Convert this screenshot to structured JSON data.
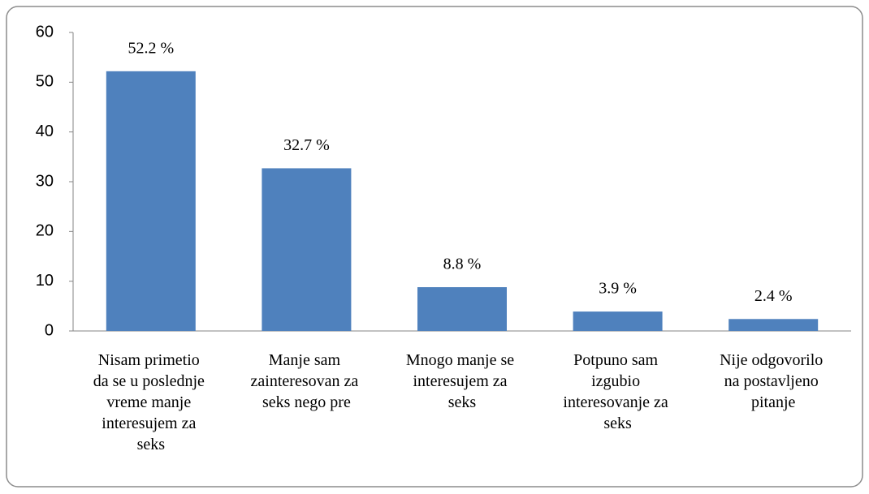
{
  "chart_data": {
    "type": "bar",
    "categories": [
      "Nisam primetio da se u poslednje vreme manje interesujem za seks",
      "Manje sam zainteresovan za seks nego pre",
      "Mnogo manje se interesujem za seks",
      "Potpuno sam izgubio interesovanje za seks",
      "Nije odgovorilo na postavljeno pitanje"
    ],
    "values": [
      52.2,
      32.7,
      8.8,
      3.9,
      2.4
    ],
    "value_labels": [
      "52.2 %",
      "32.7 %",
      "8.8 %",
      "3.9 %",
      "2.4 %"
    ],
    "color": "#4f81bd",
    "ylim": [
      0,
      60
    ],
    "yticks": [
      0,
      10,
      20,
      30,
      40,
      50,
      60
    ],
    "grid": false
  }
}
